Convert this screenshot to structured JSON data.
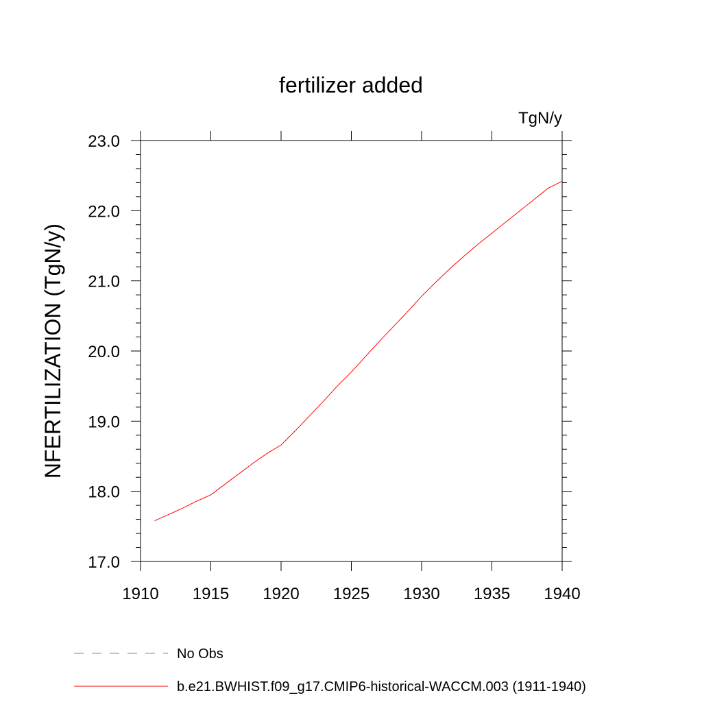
{
  "colors": {
    "series": "#ff0000",
    "no_obs": "#7f7fbf",
    "axis": "#000000",
    "background": "#ffffff"
  },
  "chart_data": {
    "type": "line",
    "title": "fertilizer added",
    "units": "TgN/y",
    "ylabel": "NFERTILIZATION  (TgN/y)",
    "xlabel": "",
    "xlim": [
      1910,
      1940
    ],
    "ylim": [
      17.0,
      23.0
    ],
    "x_ticks": [
      "1910",
      "1915",
      "1920",
      "1925",
      "1930",
      "1935",
      "1940"
    ],
    "y_ticks": [
      "17.0",
      "18.0",
      "19.0",
      "20.0",
      "21.0",
      "22.0",
      "23.0"
    ],
    "grid": false,
    "legend_placement": "bottom",
    "series": [
      {
        "name": "b.e21.BWHIST.f09_g17.CMIP6-historical-WACCM.003 (1911-1940)",
        "x": [
          1911,
          1912,
          1913,
          1914,
          1915,
          1916,
          1917,
          1918,
          1919,
          1920,
          1921,
          1922,
          1923,
          1924,
          1925,
          1926,
          1927,
          1928,
          1929,
          1930,
          1931,
          1932,
          1933,
          1934,
          1935,
          1936,
          1937,
          1938,
          1939,
          1940
        ],
        "y": [
          17.58,
          17.67,
          17.76,
          17.86,
          17.95,
          18.1,
          18.25,
          18.4,
          18.54,
          18.66,
          18.86,
          19.07,
          19.28,
          19.5,
          19.7,
          19.92,
          20.14,
          20.35,
          20.56,
          20.78,
          20.98,
          21.17,
          21.35,
          21.52,
          21.68,
          21.84,
          22.0,
          22.16,
          22.32,
          22.42
        ]
      }
    ],
    "legend": [
      {
        "label": "No Obs",
        "style": "dashed"
      },
      {
        "label": "b.e21.BWHIST.f09_g17.CMIP6-historical-WACCM.003 (1911-1940)",
        "style": "solid"
      }
    ]
  }
}
